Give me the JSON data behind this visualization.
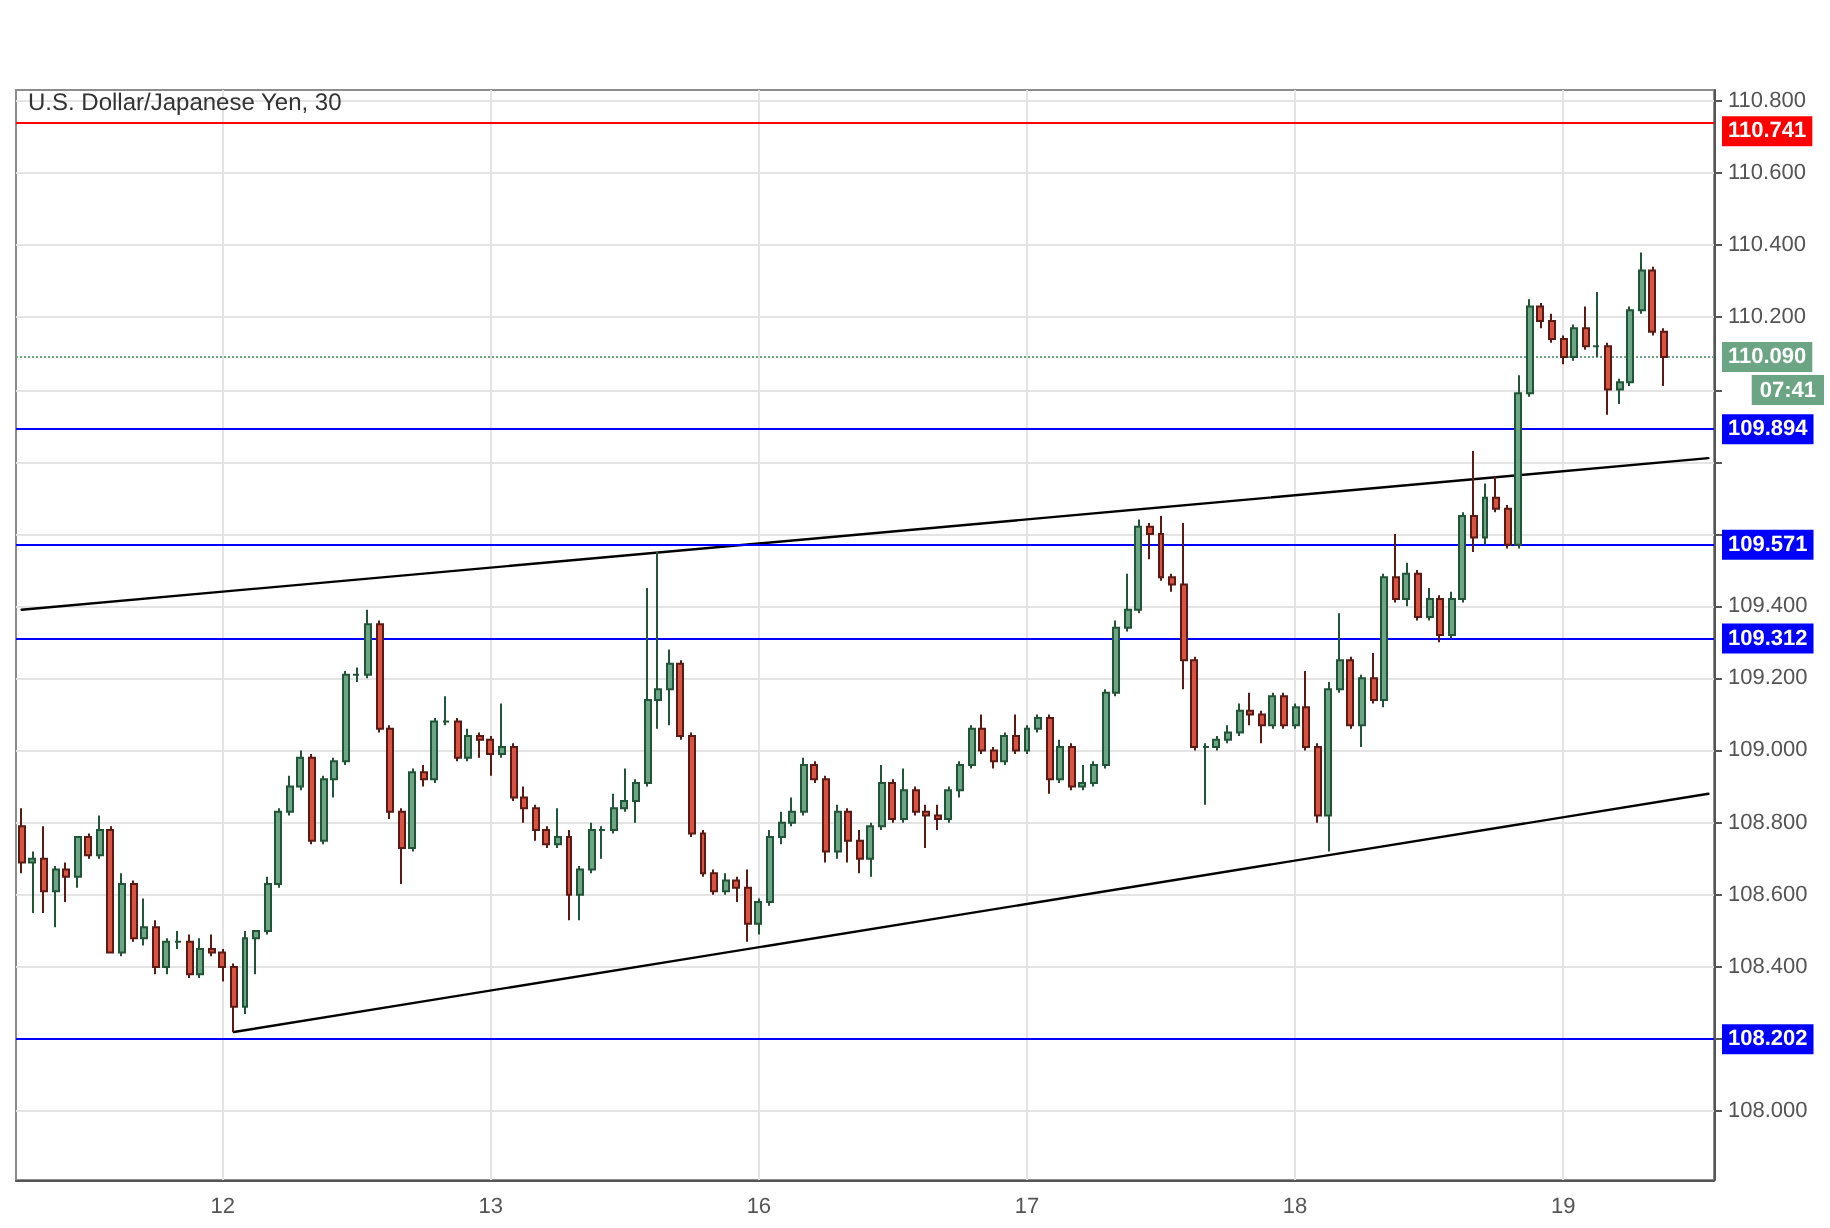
{
  "chart_data": {
    "type": "candlestick",
    "title": "U.S. Dollar/Japanese Yen, 30",
    "categories": [
      null,
      null,
      null,
      null,
      null,
      null,
      null,
      null,
      null,
      null,
      null,
      null,
      null,
      null,
      null,
      null,
      null,
      null,
      "12",
      null,
      null,
      null,
      null,
      null,
      null,
      null,
      null,
      null,
      null,
      null,
      null,
      null,
      null,
      null,
      null,
      null,
      null,
      null,
      null,
      null,
      null,
      null,
      "13",
      null,
      null,
      null,
      null,
      null,
      null,
      null,
      null,
      null,
      null,
      null,
      null,
      null,
      null,
      null,
      null,
      null,
      null,
      null,
      null,
      null,
      null,
      null,
      "16",
      null,
      null,
      null,
      null,
      null,
      null,
      null,
      null,
      null,
      null,
      null,
      null,
      null,
      null,
      null,
      null,
      null,
      null,
      null,
      null,
      null,
      null,
      null,
      "17",
      null,
      null,
      null,
      null,
      null,
      null,
      null,
      null,
      null,
      null,
      null,
      null,
      null,
      null,
      null,
      null,
      null,
      null,
      null,
      null,
      null,
      null,
      null,
      "18",
      null,
      null,
      null,
      null,
      null,
      null,
      null,
      null,
      null,
      null,
      null,
      null,
      null,
      null,
      null,
      null,
      null,
      null,
      null,
      null,
      null,
      null,
      null,
      "19",
      null,
      null,
      null,
      null,
      null,
      null,
      null,
      null,
      null,
      null,
      null,
      null,
      null
    ],
    "ohlc": [
      [
        108.79,
        108.84,
        108.66,
        108.69
      ],
      [
        108.69,
        108.72,
        108.55,
        108.7
      ],
      [
        108.7,
        108.79,
        108.55,
        108.61
      ],
      [
        108.61,
        108.68,
        108.51,
        108.67
      ],
      [
        108.67,
        108.69,
        108.58,
        108.65
      ],
      [
        108.65,
        108.76,
        108.62,
        108.76
      ],
      [
        108.76,
        108.77,
        108.7,
        108.71
      ],
      [
        108.71,
        108.82,
        108.7,
        108.78
      ],
      [
        108.78,
        108.79,
        108.44,
        108.44
      ],
      [
        108.44,
        108.66,
        108.43,
        108.63
      ],
      [
        108.63,
        108.64,
        108.47,
        108.48
      ],
      [
        108.48,
        108.59,
        108.46,
        108.51
      ],
      [
        108.51,
        108.53,
        108.38,
        108.4
      ],
      [
        108.4,
        108.48,
        108.38,
        108.47
      ],
      [
        108.47,
        108.5,
        108.45,
        108.47
      ],
      [
        108.47,
        108.49,
        108.37,
        108.38
      ],
      [
        108.38,
        108.48,
        108.37,
        108.45
      ],
      [
        108.45,
        108.49,
        108.43,
        108.44
      ],
      [
        108.44,
        108.45,
        108.36,
        108.4
      ],
      [
        108.4,
        108.41,
        108.22,
        108.29
      ],
      [
        108.29,
        108.5,
        108.27,
        108.48
      ],
      [
        108.48,
        108.5,
        108.38,
        108.5
      ],
      [
        108.5,
        108.65,
        108.49,
        108.63
      ],
      [
        108.63,
        108.84,
        108.62,
        108.83
      ],
      [
        108.83,
        108.93,
        108.82,
        108.9
      ],
      [
        108.9,
        109.0,
        108.89,
        108.98
      ],
      [
        108.98,
        108.99,
        108.74,
        108.75
      ],
      [
        108.75,
        108.93,
        108.74,
        108.92
      ],
      [
        108.92,
        108.98,
        108.87,
        108.97
      ],
      [
        108.97,
        109.22,
        108.96,
        109.21
      ],
      [
        109.21,
        109.23,
        109.19,
        109.21
      ],
      [
        109.21,
        109.39,
        109.2,
        109.35
      ],
      [
        109.35,
        109.36,
        109.05,
        109.06
      ],
      [
        109.06,
        109.07,
        108.81,
        108.83
      ],
      [
        108.83,
        108.84,
        108.63,
        108.73
      ],
      [
        108.73,
        108.95,
        108.72,
        108.94
      ],
      [
        108.94,
        108.96,
        108.9,
        108.92
      ],
      [
        108.92,
        109.09,
        108.91,
        109.08
      ],
      [
        109.08,
        109.15,
        109.07,
        109.08
      ],
      [
        109.08,
        109.09,
        108.97,
        108.98
      ],
      [
        108.98,
        109.06,
        108.97,
        109.04
      ],
      [
        109.04,
        109.05,
        108.98,
        109.03
      ],
      [
        109.03,
        109.04,
        108.93,
        108.99
      ],
      [
        108.99,
        109.13,
        108.98,
        109.01
      ],
      [
        109.01,
        109.02,
        108.86,
        108.87
      ],
      [
        108.87,
        108.9,
        108.8,
        108.84
      ],
      [
        108.84,
        108.85,
        108.75,
        108.78
      ],
      [
        108.78,
        108.79,
        108.73,
        108.74
      ],
      [
        108.74,
        108.84,
        108.73,
        108.76
      ],
      [
        108.76,
        108.78,
        108.53,
        108.6
      ],
      [
        108.6,
        108.68,
        108.53,
        108.67
      ],
      [
        108.67,
        108.8,
        108.66,
        108.78
      ],
      [
        108.78,
        108.79,
        108.7,
        108.78
      ],
      [
        108.78,
        108.88,
        108.77,
        108.84
      ],
      [
        108.84,
        108.95,
        108.83,
        108.86
      ],
      [
        108.86,
        108.92,
        108.8,
        108.91
      ],
      [
        108.91,
        109.45,
        108.9,
        109.14
      ],
      [
        109.14,
        109.55,
        109.06,
        109.17
      ],
      [
        109.17,
        109.28,
        109.07,
        109.24
      ],
      [
        109.24,
        109.25,
        109.03,
        109.04
      ],
      [
        109.04,
        109.05,
        108.76,
        108.77
      ],
      [
        108.77,
        108.78,
        108.65,
        108.66
      ],
      [
        108.66,
        108.67,
        108.6,
        108.61
      ],
      [
        108.61,
        108.66,
        108.6,
        108.64
      ],
      [
        108.64,
        108.65,
        108.58,
        108.62
      ],
      [
        108.62,
        108.67,
        108.47,
        108.52
      ],
      [
        108.52,
        108.59,
        108.49,
        108.58
      ],
      [
        108.58,
        108.78,
        108.57,
        108.76
      ],
      [
        108.76,
        108.83,
        108.74,
        108.8
      ],
      [
        108.8,
        108.87,
        108.79,
        108.83
      ],
      [
        108.83,
        108.98,
        108.82,
        108.96
      ],
      [
        108.96,
        108.97,
        108.91,
        108.92
      ],
      [
        108.92,
        108.93,
        108.69,
        108.72
      ],
      [
        108.72,
        108.85,
        108.7,
        108.83
      ],
      [
        108.83,
        108.84,
        108.69,
        108.75
      ],
      [
        108.75,
        108.78,
        108.66,
        108.7
      ],
      [
        108.7,
        108.8,
        108.65,
        108.79
      ],
      [
        108.79,
        108.96,
        108.78,
        108.91
      ],
      [
        108.91,
        108.92,
        108.8,
        108.81
      ],
      [
        108.81,
        108.95,
        108.8,
        108.89
      ],
      [
        108.89,
        108.9,
        108.82,
        108.83
      ],
      [
        108.83,
        108.85,
        108.73,
        108.82
      ],
      [
        108.82,
        108.85,
        108.78,
        108.81
      ],
      [
        108.81,
        108.9,
        108.8,
        108.89
      ],
      [
        108.89,
        108.97,
        108.87,
        108.96
      ],
      [
        108.96,
        109.07,
        108.95,
        109.06
      ],
      [
        109.06,
        109.1,
        108.99,
        109.0
      ],
      [
        109.0,
        109.01,
        108.95,
        108.97
      ],
      [
        108.97,
        109.05,
        108.96,
        109.04
      ],
      [
        109.04,
        109.1,
        108.99,
        109.0
      ],
      [
        109.0,
        109.07,
        108.99,
        109.06
      ],
      [
        109.06,
        109.1,
        109.05,
        109.09
      ],
      [
        109.09,
        109.1,
        108.88,
        108.92
      ],
      [
        108.92,
        109.03,
        108.91,
        109.01
      ],
      [
        109.01,
        109.02,
        108.89,
        108.9
      ],
      [
        108.9,
        108.96,
        108.89,
        108.91
      ],
      [
        108.91,
        108.97,
        108.9,
        108.96
      ],
      [
        108.96,
        109.17,
        108.95,
        109.16
      ],
      [
        109.16,
        109.36,
        109.15,
        109.34
      ],
      [
        109.34,
        109.49,
        109.33,
        109.39
      ],
      [
        109.39,
        109.64,
        109.38,
        109.62
      ],
      [
        109.62,
        109.63,
        109.53,
        109.6
      ],
      [
        109.6,
        109.65,
        109.47,
        109.48
      ],
      [
        109.48,
        109.49,
        109.44,
        109.46
      ],
      [
        109.46,
        109.63,
        109.17,
        109.25
      ],
      [
        109.25,
        109.26,
        109.0,
        109.01
      ],
      [
        109.01,
        109.02,
        108.85,
        109.01
      ],
      [
        109.01,
        109.04,
        109.0,
        109.03
      ],
      [
        109.03,
        109.07,
        109.02,
        109.05
      ],
      [
        109.05,
        109.13,
        109.04,
        109.11
      ],
      [
        109.11,
        109.16,
        109.07,
        109.1
      ],
      [
        109.1,
        109.11,
        109.02,
        109.07
      ],
      [
        109.07,
        109.16,
        109.06,
        109.15
      ],
      [
        109.15,
        109.16,
        109.06,
        109.07
      ],
      [
        109.07,
        109.13,
        109.06,
        109.12
      ],
      [
        109.12,
        109.22,
        109.0,
        109.01
      ],
      [
        109.01,
        109.02,
        108.8,
        108.82
      ],
      [
        108.82,
        109.19,
        108.72,
        109.17
      ],
      [
        109.17,
        109.38,
        109.16,
        109.25
      ],
      [
        109.25,
        109.26,
        109.06,
        109.07
      ],
      [
        109.07,
        109.21,
        109.01,
        109.2
      ],
      [
        109.2,
        109.27,
        109.13,
        109.14
      ],
      [
        109.14,
        109.49,
        109.12,
        109.48
      ],
      [
        109.48,
        109.6,
        109.41,
        109.42
      ],
      [
        109.42,
        109.52,
        109.4,
        109.49
      ],
      [
        109.49,
        109.5,
        109.36,
        109.37
      ],
      [
        109.37,
        109.45,
        109.36,
        109.42
      ],
      [
        109.42,
        109.43,
        109.3,
        109.32
      ],
      [
        109.32,
        109.44,
        109.31,
        109.42
      ],
      [
        109.42,
        109.66,
        109.41,
        109.65
      ],
      [
        109.65,
        109.83,
        109.55,
        109.59
      ],
      [
        109.59,
        109.74,
        109.57,
        109.7
      ],
      [
        109.7,
        109.76,
        109.66,
        109.67
      ],
      [
        109.67,
        109.68,
        109.56,
        109.57
      ],
      [
        109.57,
        110.04,
        109.56,
        109.99
      ],
      [
        109.99,
        110.25,
        109.98,
        110.23
      ],
      [
        110.23,
        110.24,
        110.17,
        110.19
      ],
      [
        110.19,
        110.21,
        110.13,
        110.14
      ],
      [
        110.14,
        110.15,
        110.07,
        110.09
      ],
      [
        110.09,
        110.18,
        110.08,
        110.17
      ],
      [
        110.17,
        110.23,
        110.11,
        110.12
      ],
      [
        110.12,
        110.27,
        110.09,
        110.12
      ],
      [
        110.12,
        110.13,
        109.93,
        110.0
      ],
      [
        110.0,
        110.03,
        109.96,
        110.02
      ],
      [
        110.02,
        110.23,
        110.01,
        110.22
      ],
      [
        110.22,
        110.38,
        110.21,
        110.33
      ],
      [
        110.33,
        110.34,
        110.15,
        110.16
      ],
      [
        110.16,
        110.17,
        110.01,
        110.09
      ],
      null,
      null,
      null,
      null
    ],
    "series": [
      {
        "type": "line",
        "color": "#000000",
        "values": [
          109.39,
          null,
          null,
          null,
          null,
          null,
          null,
          null,
          null,
          null,
          null,
          null,
          null,
          null,
          null,
          null,
          null,
          null,
          null,
          null,
          null,
          null,
          null,
          null,
          null,
          null,
          null,
          null,
          null,
          null,
          null,
          null,
          null,
          null,
          null,
          null,
          null,
          null,
          null,
          null,
          null,
          null,
          null,
          null,
          null,
          null,
          null,
          null,
          null,
          null,
          null,
          null,
          null,
          null,
          null,
          null,
          null,
          null,
          null,
          null,
          null,
          null,
          null,
          null,
          null,
          null,
          null,
          null,
          null,
          null,
          null,
          null,
          null,
          null,
          null,
          null,
          null,
          null,
          null,
          null,
          null,
          null,
          null,
          null,
          null,
          null,
          null,
          null,
          null,
          null,
          null,
          null,
          null,
          null,
          null,
          null,
          null,
          null,
          null,
          null,
          null,
          null,
          null,
          null,
          null,
          null,
          null,
          null,
          null,
          null,
          null,
          null,
          null,
          null,
          null,
          null,
          null,
          null,
          null,
          null,
          null,
          null,
          null,
          null,
          null,
          null,
          null,
          null,
          null,
          null,
          null,
          null,
          null,
          null,
          null,
          null,
          null,
          null,
          null,
          null,
          null,
          null,
          null,
          null,
          null,
          null,
          null,
          null,
          null,
          null,
          null,
          109.81
        ]
      },
      {
        "type": "line",
        "color": "#000000",
        "values": [
          null,
          null,
          null,
          null,
          null,
          null,
          null,
          null,
          null,
          null,
          null,
          null,
          null,
          null,
          null,
          null,
          null,
          null,
          null,
          108.22,
          null,
          null,
          null,
          null,
          null,
          null,
          null,
          null,
          null,
          null,
          null,
          null,
          null,
          null,
          null,
          null,
          null,
          null,
          null,
          null,
          null,
          null,
          null,
          null,
          null,
          null,
          null,
          null,
          null,
          null,
          null,
          null,
          null,
          null,
          null,
          null,
          null,
          null,
          null,
          null,
          null,
          null,
          null,
          null,
          null,
          null,
          null,
          null,
          null,
          null,
          null,
          null,
          null,
          null,
          null,
          null,
          null,
          null,
          null,
          null,
          null,
          null,
          null,
          null,
          null,
          null,
          null,
          null,
          null,
          null,
          null,
          null,
          null,
          null,
          null,
          null,
          null,
          null,
          null,
          null,
          null,
          null,
          null,
          null,
          null,
          null,
          null,
          null,
          null,
          null,
          null,
          null,
          null,
          null,
          null,
          null,
          null,
          null,
          null,
          null,
          null,
          null,
          null,
          null,
          null,
          null,
          null,
          null,
          null,
          null,
          null,
          null,
          null,
          null,
          null,
          null,
          null,
          null,
          null,
          null,
          null,
          null,
          null,
          null,
          null,
          null,
          null,
          null,
          null,
          null,
          null,
          108.88
        ]
      }
    ],
    "ylim": [
      107.81,
      110.83
    ],
    "yticks": [
      {
        "value": 108.0,
        "label": "108.000"
      },
      {
        "value": 108.2,
        "label": null
      },
      {
        "value": 108.4,
        "label": "108.400"
      },
      {
        "value": 108.6,
        "label": "108.600"
      },
      {
        "value": 108.8,
        "label": "108.800"
      },
      {
        "value": 109.0,
        "label": "109.000"
      },
      {
        "value": 109.2,
        "label": "109.200"
      },
      {
        "value": 109.4,
        "label": "109.400"
      },
      {
        "value": 109.6,
        "label": null
      },
      {
        "value": 109.8,
        "label": null
      },
      {
        "value": 110.0,
        "label": null
      },
      {
        "value": 110.2,
        "label": "110.200"
      },
      {
        "value": 110.4,
        "label": "110.400"
      },
      {
        "value": 110.6,
        "label": "110.600"
      },
      {
        "value": 110.8,
        "label": "110.800"
      }
    ],
    "grid": true,
    "ref_lines": [
      {
        "axis": "y",
        "value": 110.741,
        "label": "110.741",
        "color": "#ff0000"
      },
      {
        "axis": "y",
        "value": 110.09,
        "label": "110.090",
        "color": "#6ba583",
        "line_style": "dotted"
      },
      {
        "axis": "y",
        "value": 109.894,
        "label": "109.894",
        "color": "#0000ff"
      },
      {
        "axis": "y",
        "value": 109.571,
        "label": "109.571",
        "color": "#0000ff"
      },
      {
        "axis": "y",
        "value": 109.312,
        "label": "109.312",
        "color": "#0000ff"
      },
      {
        "axis": "y",
        "value": 108.202,
        "label": "108.202",
        "color": "#0000ff"
      }
    ],
    "annotations": [
      "07:41"
    ]
  }
}
